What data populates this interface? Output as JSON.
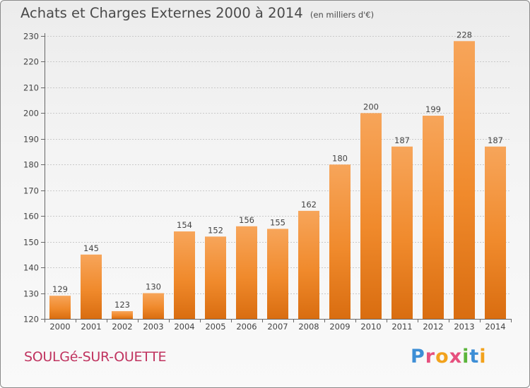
{
  "header": {
    "title": "Achats et Charges Externes 2000 à 2014",
    "subtitle": "(en milliers d'€)"
  },
  "footer": {
    "commune": "SOULGé-SUR-OUETTE",
    "logo_letters": [
      "P",
      "r",
      "o",
      "x",
      "i",
      "t",
      "i"
    ],
    "logo_colors": [
      "#3d8ed6",
      "#e6507e",
      "#f2a21c",
      "#e6507e",
      "#5bb53b",
      "#3d8ed6",
      "#f2a21c"
    ]
  },
  "chart_data": {
    "type": "bar",
    "title": "Achats et Charges Externes 2000 à 2014",
    "subtitle": "(en milliers d'€)",
    "categories": [
      "2000",
      "2001",
      "2002",
      "2003",
      "2004",
      "2005",
      "2006",
      "2007",
      "2008",
      "2009",
      "2010",
      "2011",
      "2012",
      "2013",
      "2014"
    ],
    "values": [
      129,
      145,
      123,
      130,
      154,
      152,
      156,
      155,
      162,
      180,
      200,
      187,
      199,
      228,
      187
    ],
    "ylim": [
      120,
      230
    ],
    "yticks": [
      120,
      130,
      140,
      150,
      160,
      170,
      180,
      190,
      200,
      210,
      220,
      230
    ],
    "grid": true,
    "bar_color": "#f08a2c"
  }
}
